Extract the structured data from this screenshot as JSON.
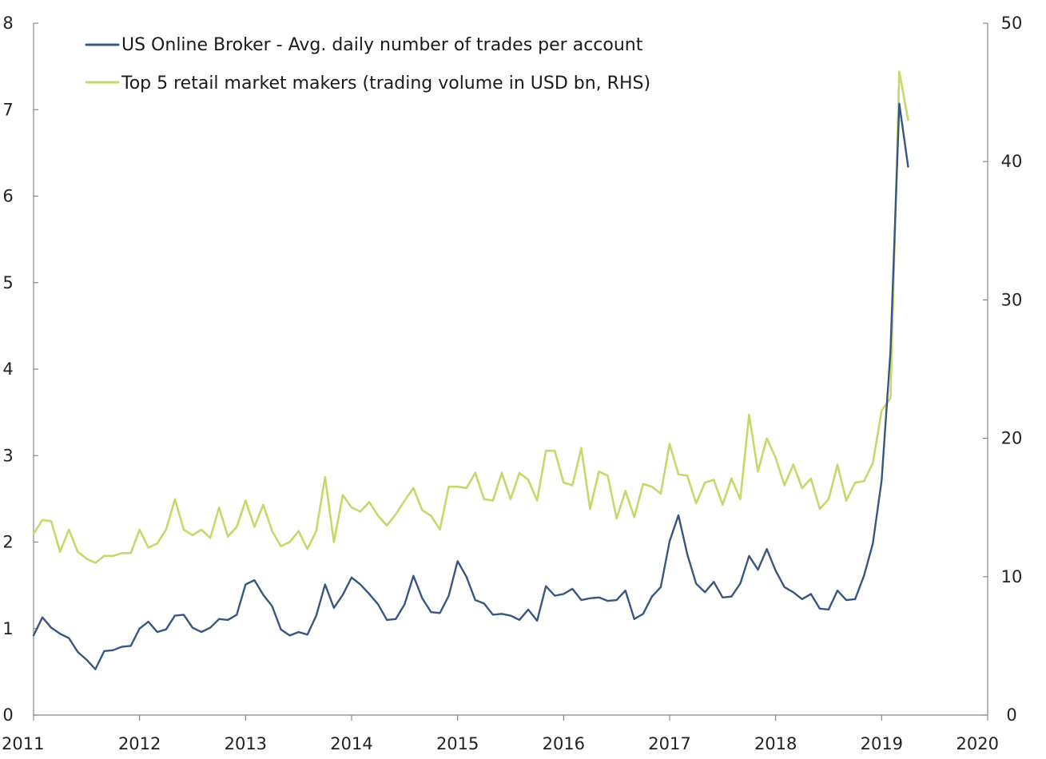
{
  "chart_data": {
    "type": "line",
    "title": "",
    "xlabel": "",
    "ylabel": "",
    "y2label": "",
    "grid": false,
    "legend_position": "top-left",
    "xlim": [
      2011,
      2020
    ],
    "ylim": [
      0,
      8
    ],
    "y2lim": [
      0,
      50
    ],
    "x_ticks": [
      "2011",
      "2012",
      "2013",
      "2014",
      "2015",
      "2016",
      "2017",
      "2018",
      "2019",
      "2020"
    ],
    "y_ticks": [
      "0",
      "1",
      "2",
      "3",
      "4",
      "5",
      "6",
      "7",
      "8"
    ],
    "y2_ticks": [
      "0",
      "10",
      "20",
      "30",
      "40",
      "50"
    ],
    "colors": {
      "series_0": "#3a5580",
      "series_1": "#c5d86a",
      "axis": "#888888"
    },
    "series": [
      {
        "name": "US Online Broker - Avg. daily number of trades per account",
        "axis": "left",
        "x_start": 2011.0,
        "x_step": 0.08333,
        "values": [
          0.92,
          1.13,
          1.01,
          0.94,
          0.89,
          0.73,
          0.64,
          0.53,
          0.74,
          0.75,
          0.79,
          0.8,
          1.0,
          1.08,
          0.96,
          0.99,
          1.15,
          1.16,
          1.01,
          0.96,
          1.01,
          1.11,
          1.1,
          1.16,
          1.51,
          1.56,
          1.39,
          1.26,
          0.99,
          0.92,
          0.96,
          0.93,
          1.15,
          1.51,
          1.24,
          1.39,
          1.59,
          1.51,
          1.4,
          1.28,
          1.1,
          1.11,
          1.28,
          1.61,
          1.35,
          1.19,
          1.18,
          1.38,
          1.78,
          1.6,
          1.33,
          1.29,
          1.16,
          1.17,
          1.15,
          1.1,
          1.22,
          1.09,
          1.49,
          1.38,
          1.4,
          1.46,
          1.33,
          1.35,
          1.36,
          1.32,
          1.33,
          1.44,
          1.11,
          1.17,
          1.37,
          1.48,
          2.01,
          2.31,
          1.86,
          1.52,
          1.42,
          1.54,
          1.36,
          1.37,
          1.52,
          1.84,
          1.68,
          1.92,
          1.67,
          1.48,
          1.42,
          1.34,
          1.4,
          1.23,
          1.22,
          1.44,
          1.33,
          1.34,
          1.61,
          1.98,
          2.71,
          4.2,
          7.07,
          6.34
        ]
      },
      {
        "name": "Top 5 retail market makers (trading volume in USD bn, RHS)",
        "axis": "right",
        "x_start": 2011.0,
        "x_step": 0.08333,
        "values": [
          13.1,
          14.1,
          14.0,
          11.8,
          13.4,
          11.8,
          11.3,
          11.0,
          11.5,
          11.5,
          11.7,
          11.7,
          13.4,
          12.1,
          12.4,
          13.4,
          15.6,
          13.4,
          13.0,
          13.4,
          12.8,
          15.0,
          12.9,
          13.6,
          15.5,
          13.6,
          15.2,
          13.3,
          12.2,
          12.5,
          13.3,
          12.0,
          13.3,
          17.2,
          12.5,
          15.9,
          15.0,
          14.7,
          15.4,
          14.4,
          13.7,
          14.5,
          15.5,
          16.4,
          14.8,
          14.4,
          13.4,
          16.5,
          16.5,
          16.4,
          17.5,
          15.6,
          15.5,
          17.5,
          15.6,
          17.5,
          17.0,
          15.5,
          19.1,
          19.1,
          16.8,
          16.6,
          19.3,
          14.9,
          17.6,
          17.3,
          14.2,
          16.2,
          14.3,
          16.7,
          16.5,
          16.0,
          19.6,
          17.4,
          17.3,
          15.3,
          16.8,
          17.0,
          15.2,
          17.1,
          15.6,
          21.7,
          17.6,
          20.0,
          18.6,
          16.6,
          18.1,
          16.4,
          17.1,
          14.9,
          15.6,
          18.1,
          15.5,
          16.8,
          16.9,
          18.2,
          22.0,
          22.9,
          46.5,
          43.0
        ]
      }
    ]
  }
}
